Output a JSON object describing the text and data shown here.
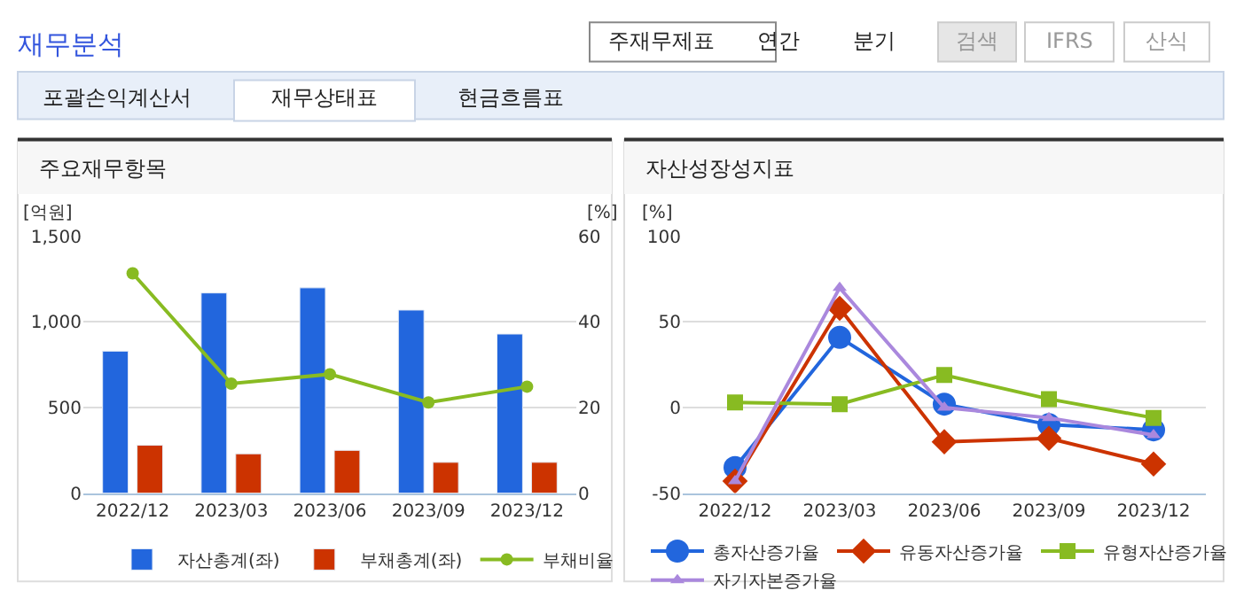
{
  "chart_data": [
    {
      "type": "other",
      "title": "재무분석",
      "annotations": [
        "주재무제표",
        "연간",
        "분기",
        "검색",
        "IFRS",
        "산식",
        "포괄손익계산서",
        "재무상태표",
        "현금흐름표"
      ]
    },
    {
      "type": "bar",
      "title": "주요재무항목",
      "categories": [
        "2022/12",
        "2023/03",
        "2023/06",
        "2023/09",
        "2023/12"
      ],
      "ylabel": "[억원]",
      "y2label": "[%]",
      "ylim": [
        0,
        1500
      ],
      "yticks": [
        0,
        500,
        {
          "value": 1000,
          "label": "1,000"
        },
        {
          "value": 1500,
          "label": "1,500"
        }
      ],
      "y2lim": [
        0,
        60
      ],
      "y2ticks": [
        0,
        20,
        40,
        60
      ],
      "grid": "y",
      "legend": "bottom",
      "series": [
        {
          "name": "자산총계(좌)",
          "color": "#2266dd",
          "values": [
            830,
            1170,
            1200,
            1070,
            930
          ]
        },
        {
          "name": "부채총계(좌)",
          "color": "#cc3300",
          "values": [
            280,
            230,
            250,
            180,
            180
          ]
        },
        {
          "name": "부채비율",
          "type": "line",
          "axis": "y2",
          "marker": "circle",
          "color": "#88bb22",
          "values": [
            51.4,
            25.6,
            27.8,
            21.2,
            24.9
          ]
        }
      ]
    },
    {
      "type": "line",
      "title": "자산성장성지표",
      "categories": [
        "2022/12",
        "2023/03",
        "2023/06",
        "2023/09",
        "2023/12"
      ],
      "ylabel": "[%]",
      "ylim": [
        -50,
        100
      ],
      "yticks": [
        -50,
        0,
        50,
        100
      ],
      "grid": "y",
      "legend": "bottom",
      "series": [
        {
          "name": "총자산증가율",
          "color": "#2266dd",
          "marker": "circle",
          "values": [
            -35,
            41,
            2,
            -10,
            -13
          ]
        },
        {
          "name": "유동자산증가율",
          "color": "#cc3300",
          "marker": "diamond",
          "values": [
            -43,
            58,
            -20,
            -18,
            -33
          ]
        },
        {
          "name": "유형자산증가율",
          "color": "#88bb22",
          "marker": "square",
          "values": [
            3,
            2,
            19,
            5,
            -6
          ]
        },
        {
          "name": "자기자본증가율",
          "color": "#aa88dd",
          "marker": "triangle",
          "values": [
            -43,
            70,
            0,
            -6,
            -16
          ]
        }
      ]
    }
  ]
}
